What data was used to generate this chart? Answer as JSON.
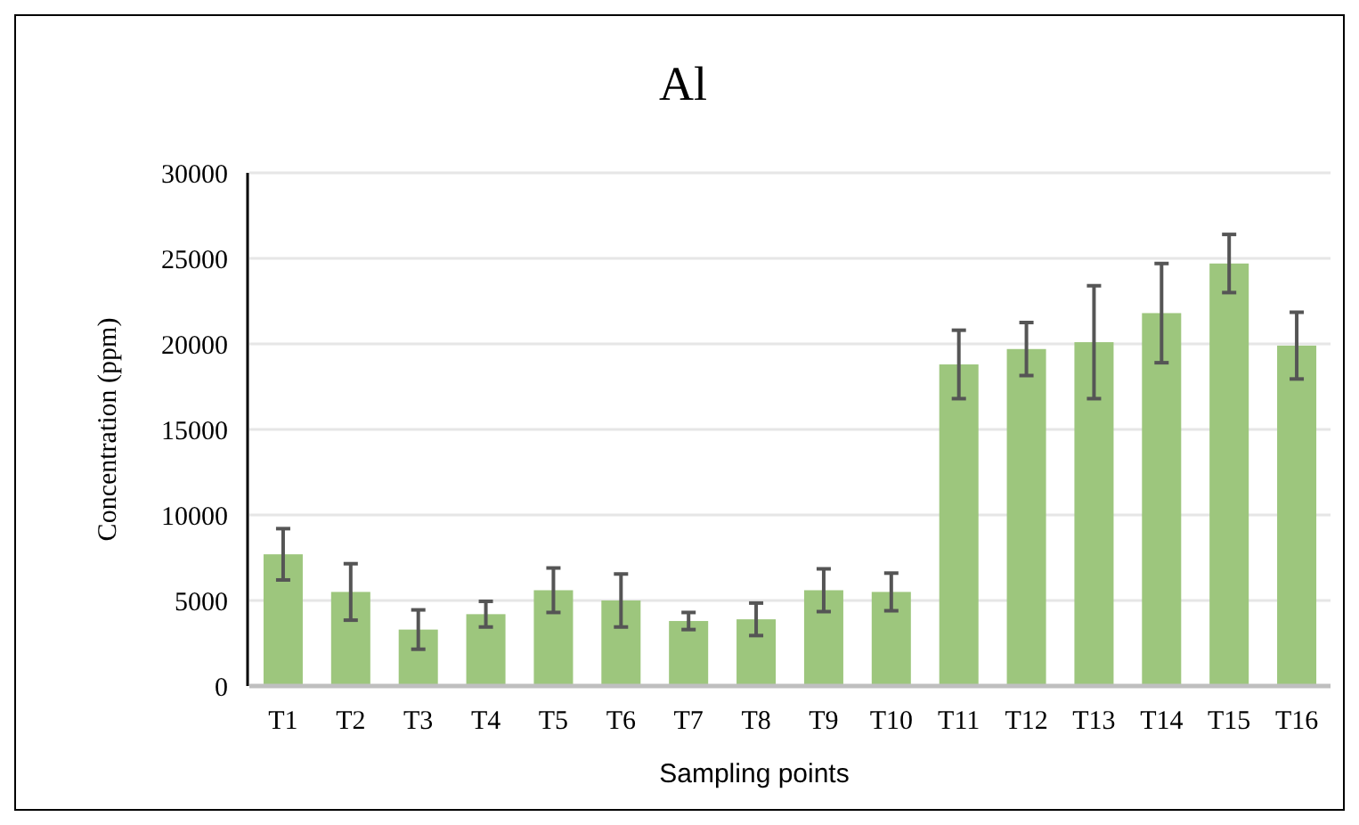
{
  "chart_data": {
    "type": "bar",
    "title": "Al",
    "xlabel": "Sampling points",
    "ylabel": "Concentration (ppm)",
    "categories": [
      "T1",
      "T2",
      "T3",
      "T4",
      "T5",
      "T6",
      "T7",
      "T8",
      "T9",
      "T10",
      "T11",
      "T12",
      "T13",
      "T14",
      "T15",
      "T16"
    ],
    "values": [
      7700,
      5500,
      3300,
      4200,
      5600,
      5000,
      3800,
      3900,
      5600,
      5500,
      18800,
      19700,
      20100,
      21800,
      24700,
      19900
    ],
    "errors": [
      1500,
      1650,
      1150,
      750,
      1300,
      1550,
      500,
      950,
      1250,
      1100,
      2000,
      1550,
      3300,
      2900,
      1700,
      1950
    ],
    "color": "#9dc67d",
    "ylim": [
      0,
      30000
    ],
    "yticks": [
      0,
      5000,
      10000,
      15000,
      20000,
      25000,
      30000
    ],
    "grid": "y"
  }
}
